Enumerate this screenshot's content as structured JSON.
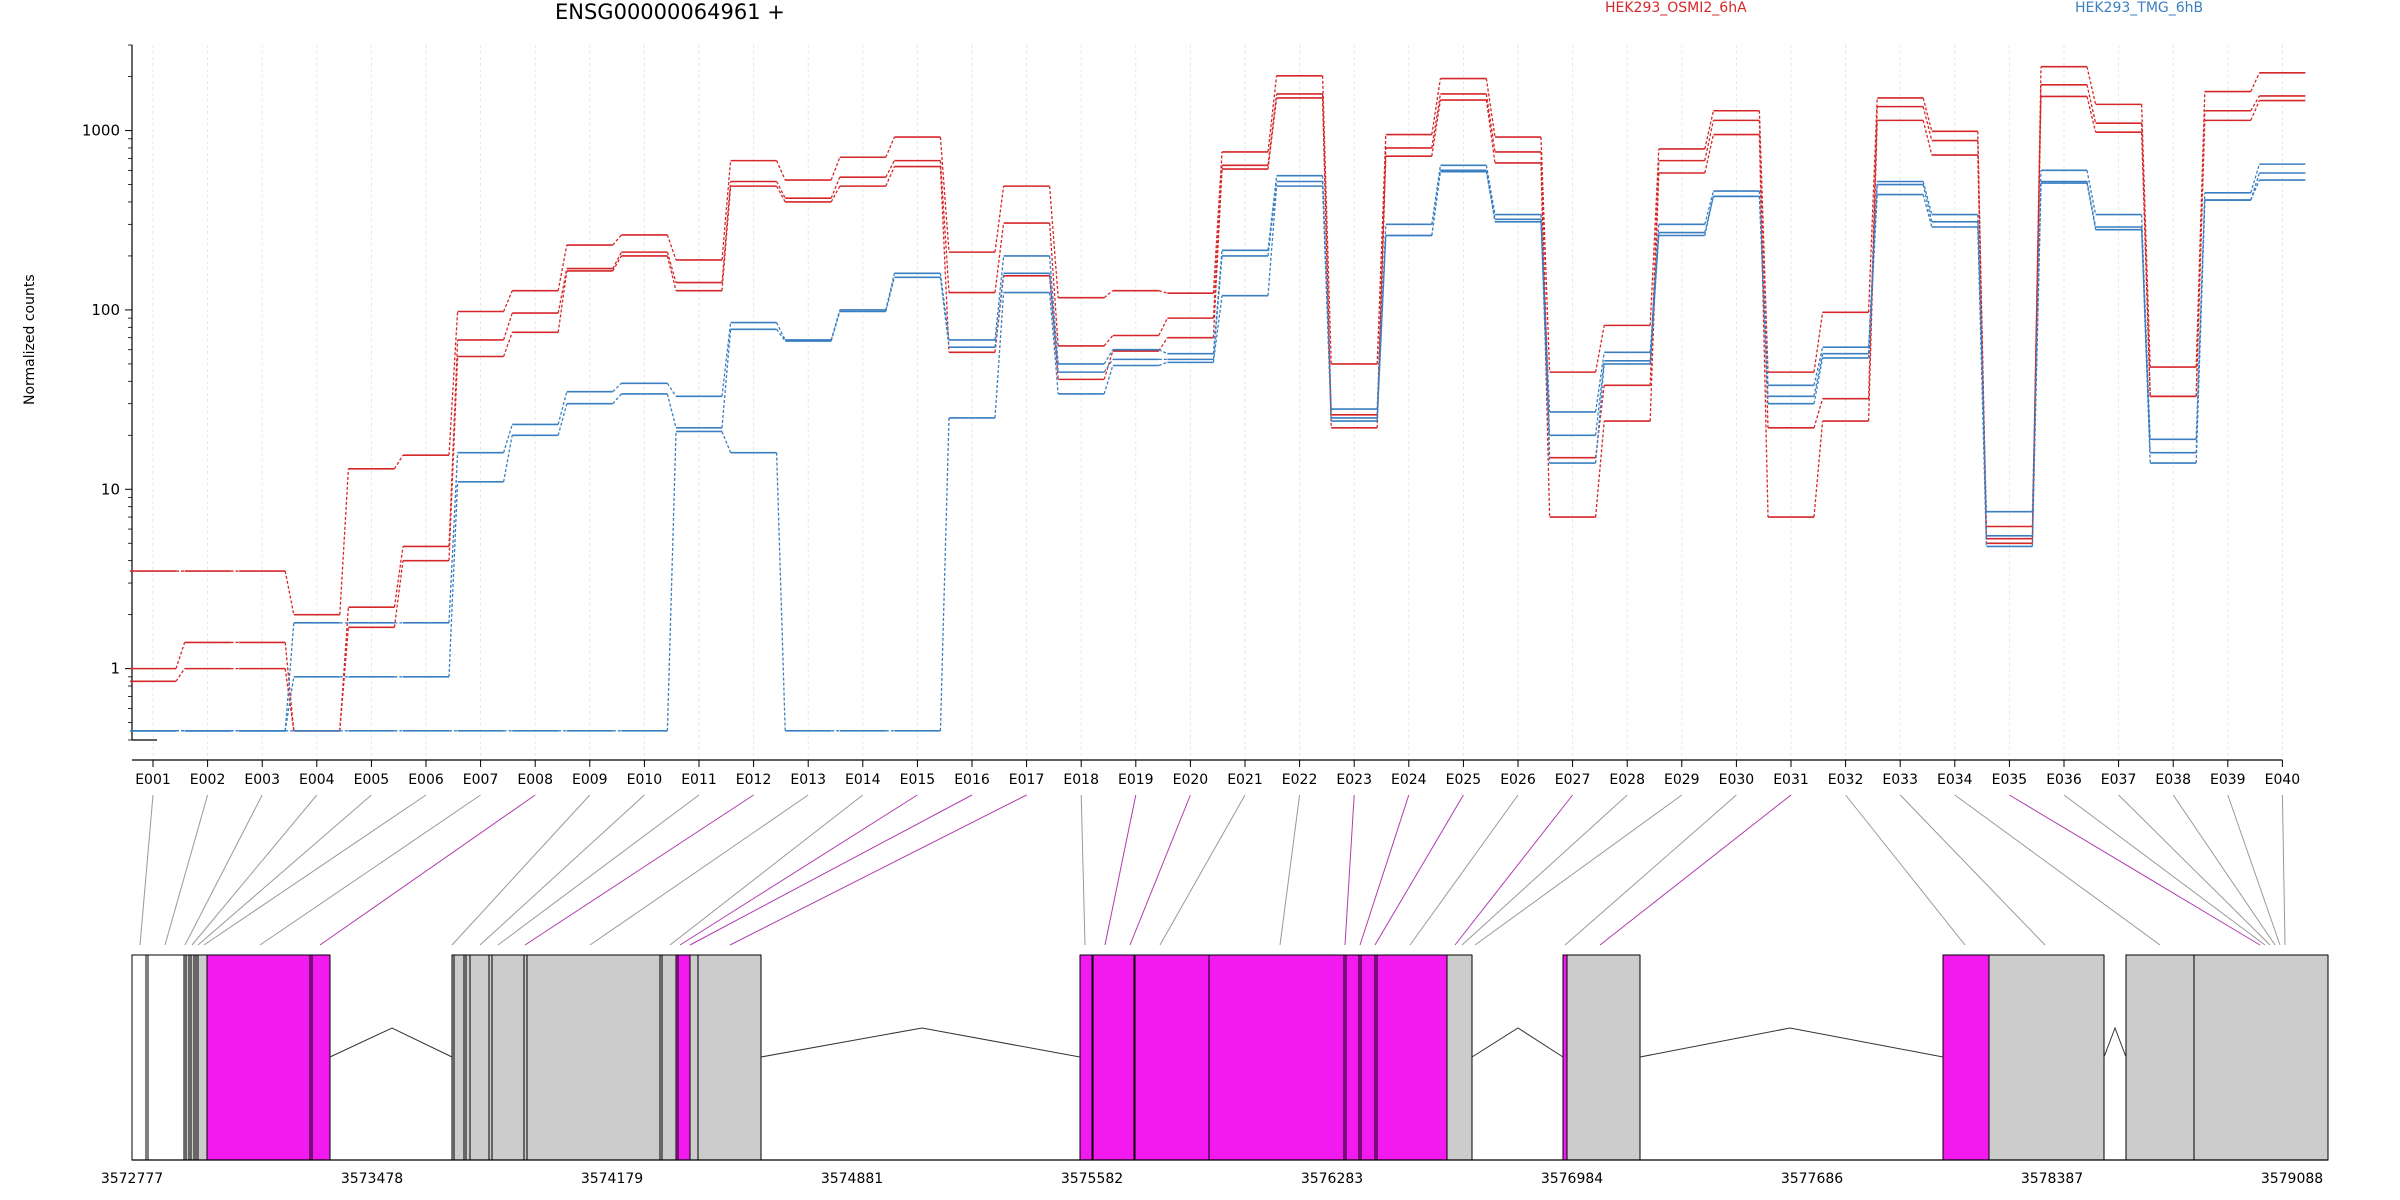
{
  "chart_data": {
    "type": "line",
    "title": "ENSG00000064961 +",
    "ylabel": "Normalized counts",
    "xlabel": "",
    "yscale": "log",
    "ylim": [
      0.4,
      3000
    ],
    "y_ticks": [
      {
        "value": 1,
        "label": "1"
      },
      {
        "value": 10,
        "label": "10"
      },
      {
        "value": 100,
        "label": "100"
      },
      {
        "value": 1000,
        "label": "1000"
      }
    ],
    "categories": [
      "E001",
      "E002",
      "E003",
      "E004",
      "E005",
      "E006",
      "E007",
      "E008",
      "E009",
      "E010",
      "E011",
      "E012",
      "E013",
      "E014",
      "E015",
      "E016",
      "E017",
      "E018",
      "E019",
      "E020",
      "E021",
      "E022",
      "E023",
      "E024",
      "E025",
      "E026",
      "E027",
      "E028",
      "E029",
      "E030",
      "E031",
      "E032",
      "E033",
      "E034",
      "E035",
      "E036",
      "E037",
      "E038",
      "E039",
      "E040"
    ],
    "grid": "vertical",
    "legend": [
      {
        "name": "HEK293_OSMI2_6hA",
        "color": "#d62728"
      },
      {
        "name": "HEK293_TMG_6hB",
        "color": "#3a7fc1"
      }
    ],
    "series": [
      {
        "group": "HEK293_OSMI2_6hA",
        "color": "#d62728",
        "values": [
          3.5,
          3.5,
          3.5,
          2.0,
          13.0,
          15.5,
          98,
          128,
          230,
          262,
          190,
          680,
          530,
          710,
          920,
          210,
          490,
          117,
          128,
          124,
          760,
          2020,
          50,
          950,
          1950,
          920,
          45,
          82,
          790,
          1290,
          45,
          97,
          1520,
          990,
          5.0,
          2270,
          1400,
          48,
          1650,
          2100
        ]
      },
      {
        "group": "HEK293_OSMI2_6hA",
        "color": "#d62728",
        "values": [
          1.0,
          1.4,
          1.4,
          0.45,
          2.2,
          4.8,
          68,
          96,
          170,
          210,
          142,
          520,
          420,
          550,
          680,
          125,
          305,
          63,
          72,
          90,
          640,
          1600,
          26,
          800,
          1600,
          760,
          15,
          38,
          680,
          1140,
          22,
          32,
          1360,
          880,
          6.2,
          1800,
          1100,
          33,
          1290,
          1560
        ]
      },
      {
        "group": "HEK293_OSMI2_6hA",
        "color": "#d62728",
        "values": [
          0.85,
          1.0,
          1.0,
          0.45,
          1.7,
          4.0,
          55,
          75,
          165,
          200,
          128,
          490,
          400,
          490,
          630,
          58,
          155,
          41,
          59,
          70,
          610,
          1520,
          22,
          720,
          1480,
          660,
          7,
          24,
          580,
          950,
          7,
          24,
          1140,
          730,
          5.3,
          1550,
          980,
          33,
          1140,
          1470
        ]
      },
      {
        "group": "HEK293_TMG_6hB",
        "color": "#3a7fc1",
        "values": [
          0.45,
          0.45,
          0.45,
          1.8,
          1.8,
          1.8,
          16,
          23,
          35,
          39,
          33,
          85,
          68,
          100,
          160,
          68,
          200,
          50,
          60,
          57,
          215,
          560,
          28,
          300,
          640,
          340,
          27,
          58,
          300,
          460,
          38,
          62,
          520,
          340,
          7.5,
          600,
          340,
          19,
          450,
          650
        ]
      },
      {
        "group": "HEK293_TMG_6hB",
        "color": "#3a7fc1",
        "values": [
          0.45,
          0.45,
          0.45,
          0.9,
          0.9,
          0.9,
          11,
          20,
          30,
          34,
          22,
          78,
          67,
          98,
          152,
          62,
          160,
          45,
          53,
          53,
          200,
          520,
          25,
          260,
          600,
          320,
          20,
          52,
          270,
          430,
          33,
          57,
          500,
          310,
          5.5,
          520,
          290,
          16,
          410,
          580
        ]
      },
      {
        "group": "HEK293_TMG_6hB",
        "color": "#3a7fc1",
        "values": [
          0.45,
          0.45,
          0.45,
          0.45,
          0.45,
          0.45,
          0.45,
          0.45,
          0.45,
          0.45,
          21,
          16,
          0.45,
          0.45,
          0.45,
          25,
          125,
          34,
          49,
          51,
          120,
          490,
          24,
          260,
          590,
          310,
          14,
          50,
          260,
          430,
          30,
          54,
          440,
          290,
          4.8,
          510,
          280,
          14,
          410,
          530
        ]
      }
    ],
    "gene_model": {
      "genomic_ticks": [
        "3572777",
        "3573478",
        "3574179",
        "3574881",
        "3575582",
        "3576283",
        "3576984",
        "3577686",
        "3578387",
        "3579088"
      ],
      "exon_colors": {
        "constitutive": "#cccccc",
        "highlighted": "#f21aee"
      }
    }
  }
}
